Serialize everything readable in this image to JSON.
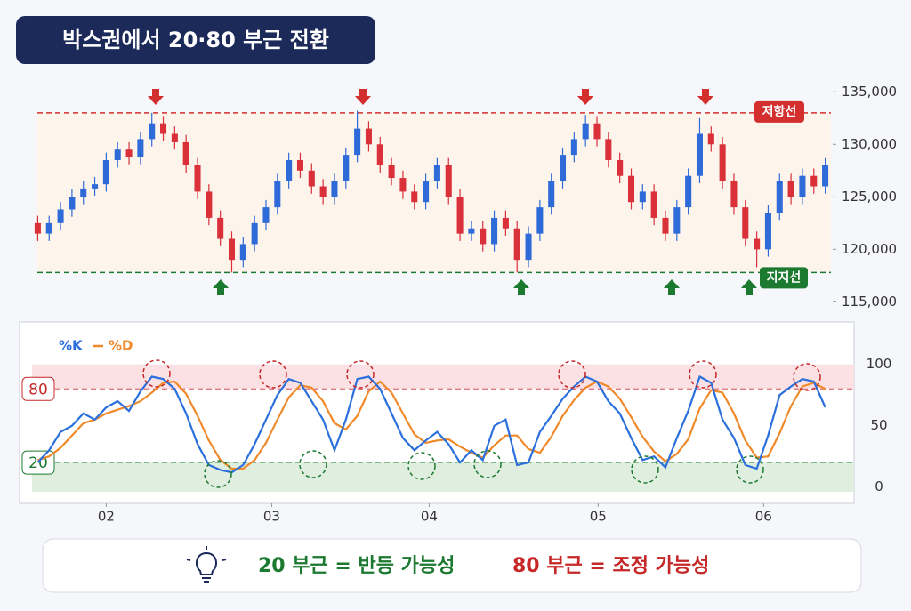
{
  "title": "박스권에서 20·80 부근 전환",
  "note": {
    "left": "20 부근 = 반등 가능성",
    "right": "80 부근 = 조정 가능성"
  },
  "chart_data": [
    {
      "type": "candlestick",
      "up_color": "#2f6bd8",
      "down_color": "#d9303a",
      "open": [
        122500,
        121500,
        122500,
        123800,
        125000,
        125800,
        126200,
        128500,
        129500,
        128800,
        130500,
        132000,
        131000,
        130200,
        128000,
        125500,
        123000,
        121000,
        119000,
        120500,
        122500,
        124000,
        126500,
        128500,
        127500,
        126000,
        125000,
        126500,
        129000,
        131500,
        130000,
        128000,
        126800,
        125500,
        124500,
        126500,
        128000,
        125000,
        121500,
        122000,
        120500,
        123000,
        122000,
        119000,
        121500,
        124000,
        126500,
        129000,
        130500,
        132000,
        130500,
        128500,
        127000,
        124500,
        125500,
        123000,
        121500,
        124000,
        127000,
        131000,
        130000,
        126500,
        124000,
        121000,
        120000,
        123500,
        126500,
        125000,
        127000,
        126000
      ],
      "high": [
        123200,
        123200,
        124500,
        125700,
        126500,
        126900,
        129200,
        130200,
        130200,
        131200,
        133000,
        132700,
        131700,
        130900,
        128700,
        126200,
        123700,
        121700,
        121200,
        123200,
        124700,
        127200,
        129200,
        129200,
        128200,
        126700,
        127200,
        129700,
        133200,
        132200,
        130700,
        128700,
        127500,
        126200,
        127200,
        128700,
        128700,
        125700,
        122700,
        122700,
        123700,
        123700,
        122700,
        122200,
        124700,
        127200,
        129700,
        131200,
        132800,
        132700,
        131200,
        129200,
        127700,
        126200,
        126200,
        123700,
        124700,
        127700,
        132500,
        131700,
        130700,
        127200,
        124700,
        121700,
        124200,
        127200,
        127200,
        127700,
        127700,
        128700
      ],
      "low": [
        120800,
        120800,
        121800,
        123100,
        124300,
        125100,
        125500,
        127800,
        128100,
        128100,
        129800,
        130300,
        129500,
        127300,
        124800,
        122300,
        120300,
        117800,
        118300,
        119800,
        121800,
        123300,
        125800,
        126800,
        125300,
        124300,
        124300,
        125800,
        128300,
        129300,
        127300,
        126100,
        124800,
        123800,
        123800,
        125800,
        124300,
        120800,
        120800,
        119800,
        119800,
        121300,
        117800,
        118300,
        120800,
        123300,
        125800,
        128300,
        129800,
        129800,
        127800,
        126300,
        123800,
        123800,
        122300,
        120800,
        120800,
        123300,
        126300,
        129300,
        125800,
        123300,
        120300,
        118300,
        119300,
        122800,
        124300,
        124300,
        125300,
        125300
      ],
      "close": [
        121500,
        122500,
        123800,
        125000,
        125800,
        126200,
        128500,
        129500,
        128800,
        130500,
        132000,
        131000,
        130200,
        128000,
        125500,
        123000,
        121000,
        119000,
        120500,
        122500,
        124000,
        126500,
        128500,
        127500,
        126000,
        125000,
        126500,
        129000,
        131500,
        130000,
        128000,
        126800,
        125500,
        124500,
        126500,
        128000,
        125000,
        121500,
        122000,
        120500,
        123000,
        122000,
        119000,
        121500,
        124000,
        126500,
        129000,
        130500,
        132000,
        130500,
        128500,
        127000,
        124500,
        125500,
        123000,
        121500,
        124000,
        127000,
        131000,
        130000,
        126500,
        124000,
        121000,
        120000,
        123500,
        126500,
        125000,
        127000,
        126000,
        128000
      ],
      "xlim": [
        -0.5,
        69.5
      ],
      "ylim": [
        114100,
        135700
      ],
      "yticks": [
        {
          "value": 115000,
          "label": "115,000"
        },
        {
          "value": 120000,
          "label": "120,000"
        },
        {
          "value": 125000,
          "label": "125,000"
        },
        {
          "value": 130000,
          "label": "130,000"
        },
        {
          "value": 135000,
          "label": "135,000"
        }
      ],
      "resistance": {
        "value": 133000,
        "label": "저항선",
        "color": "#d32f2f"
      },
      "support": {
        "value": 117800,
        "label": "지지선",
        "color": "#1b7a2f"
      }
    },
    {
      "type": "line",
      "xlim": [
        -0.5,
        69.5
      ],
      "xticks": [
        {
          "value": 6,
          "label": "02"
        },
        {
          "value": 20.5,
          "label": "03"
        },
        {
          "value": 34.3,
          "label": "04"
        },
        {
          "value": 49.1,
          "label": "05"
        },
        {
          "value": 63.6,
          "label": "06"
        }
      ],
      "ylim": [
        -6,
        107
      ],
      "yticks": [
        0,
        50,
        100
      ],
      "levels": [
        80,
        20
      ],
      "series": [
        {
          "name": "%K",
          "color": "#2a6fdb",
          "values": [
            20,
            30,
            45,
            50,
            60,
            55,
            65,
            70,
            62,
            78,
            90,
            88,
            80,
            60,
            35,
            18,
            14,
            12,
            18,
            35,
            55,
            75,
            88,
            85,
            70,
            55,
            30,
            55,
            88,
            90,
            80,
            60,
            40,
            30,
            38,
            45,
            35,
            20,
            30,
            22,
            50,
            55,
            18,
            20,
            45,
            58,
            72,
            82,
            90,
            86,
            70,
            60,
            40,
            22,
            25,
            16,
            40,
            62,
            90,
            85,
            55,
            40,
            18,
            15,
            42,
            75,
            82,
            88,
            86,
            65
          ]
        },
        {
          "name": "%D",
          "color": "#f0892a",
          "values": [
            22,
            25,
            32,
            42,
            52,
            55,
            60,
            63,
            66,
            70,
            77,
            85,
            86,
            76,
            58,
            38,
            22,
            15,
            15,
            22,
            36,
            55,
            73,
            83,
            81,
            70,
            52,
            47,
            58,
            78,
            86,
            77,
            60,
            43,
            36,
            38,
            39,
            33,
            28,
            24,
            34,
            42,
            42,
            31,
            28,
            41,
            58,
            71,
            81,
            86,
            82,
            72,
            57,
            41,
            29,
            21,
            27,
            39,
            64,
            79,
            77,
            60,
            38,
            24,
            25,
            44,
            66,
            82,
            85,
            80
          ]
        }
      ]
    }
  ]
}
